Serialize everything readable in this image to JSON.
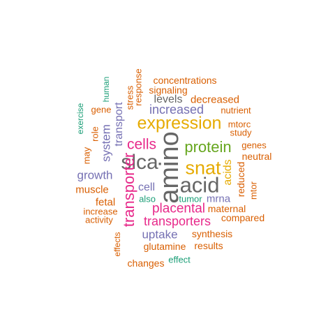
{
  "colors": {
    "orange": "#d95f02",
    "gold": "#e6ab02",
    "purple": "#7570b3",
    "magenta": "#e7298a",
    "green": "#66a61e",
    "gray": "#666666",
    "teal": "#1b9e77"
  },
  "words": [
    {
      "text": "concentrations",
      "color": "orange"
    },
    {
      "text": "signaling",
      "color": "orange"
    },
    {
      "text": "levels",
      "color": "gray"
    },
    {
      "text": "decreased",
      "color": "orange"
    },
    {
      "text": "response",
      "color": "orange"
    },
    {
      "text": "stress",
      "color": "orange"
    },
    {
      "text": "human",
      "color": "teal"
    },
    {
      "text": "exercise",
      "color": "teal"
    },
    {
      "text": "gene",
      "color": "orange"
    },
    {
      "text": "role",
      "color": "orange"
    },
    {
      "text": "transport",
      "color": "purple"
    },
    {
      "text": "increased",
      "color": "purple"
    },
    {
      "text": "nutrient",
      "color": "orange"
    },
    {
      "text": "expression",
      "color": "gold"
    },
    {
      "text": "mtorc",
      "color": "orange"
    },
    {
      "text": "study",
      "color": "orange"
    },
    {
      "text": "system",
      "color": "purple"
    },
    {
      "text": "may",
      "color": "orange"
    },
    {
      "text": "cells",
      "color": "magenta"
    },
    {
      "text": "amino",
      "color": "gray"
    },
    {
      "text": "protein",
      "color": "green"
    },
    {
      "text": "genes",
      "color": "orange"
    },
    {
      "text": "neutral",
      "color": "orange"
    },
    {
      "text": "slca",
      "color": "gray"
    },
    {
      "text": "snat",
      "color": "gold"
    },
    {
      "text": "growth",
      "color": "purple"
    },
    {
      "text": "acids",
      "color": "gold"
    },
    {
      "text": "reduced",
      "color": "orange"
    },
    {
      "text": "mtor",
      "color": "orange"
    },
    {
      "text": "acid",
      "color": "gray"
    },
    {
      "text": "muscle",
      "color": "orange"
    },
    {
      "text": "transporter",
      "color": "magenta"
    },
    {
      "text": "cell",
      "color": "purple"
    },
    {
      "text": "fetal",
      "color": "orange"
    },
    {
      "text": "also",
      "color": "teal"
    },
    {
      "text": "tumor",
      "color": "teal"
    },
    {
      "text": "mrna",
      "color": "purple"
    },
    {
      "text": "increase",
      "color": "orange"
    },
    {
      "text": "placental",
      "color": "magenta"
    },
    {
      "text": "maternal",
      "color": "orange"
    },
    {
      "text": "activity",
      "color": "orange"
    },
    {
      "text": "compared",
      "color": "orange"
    },
    {
      "text": "transporters",
      "color": "magenta"
    },
    {
      "text": "effects",
      "color": "orange"
    },
    {
      "text": "uptake",
      "color": "purple"
    },
    {
      "text": "synthesis",
      "color": "orange"
    },
    {
      "text": "glutamine",
      "color": "orange"
    },
    {
      "text": "results",
      "color": "orange"
    },
    {
      "text": "changes",
      "color": "orange"
    },
    {
      "text": "effect",
      "color": "teal"
    }
  ]
}
